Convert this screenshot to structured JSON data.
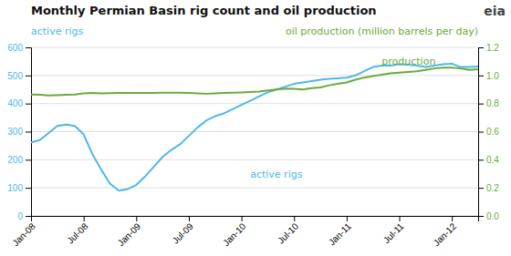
{
  "chart_data": {
    "type": "line",
    "title": "Monthly Permian Basin rig count and oil production",
    "ylabel": "active rigs",
    "y2label": "oil production (million barrels per day)",
    "categories": [
      "Jan-08",
      null,
      null,
      null,
      null,
      null,
      "Jul-08",
      null,
      null,
      null,
      null,
      null,
      "Jan-09",
      null,
      null,
      null,
      null,
      null,
      "Jul-09",
      null,
      null,
      null,
      null,
      null,
      "Jan-10",
      null,
      null,
      null,
      null,
      null,
      "Jul-10",
      null,
      null,
      null,
      null,
      null,
      "Jan-11",
      null,
      null,
      null,
      null,
      null,
      "Jul-11",
      null,
      null,
      null,
      null,
      null,
      "Jan-12",
      null,
      null,
      null
    ],
    "series": [
      {
        "color": "#4db8e8",
        "values": [
          262,
          270,
          295,
          320,
          325,
          320,
          290,
          220,
          165,
          115,
          90,
          95,
          110,
          140,
          175,
          210,
          235,
          255,
          285,
          315,
          340,
          355,
          365,
          380,
          395,
          410,
          425,
          440,
          450,
          460,
          470,
          475,
          480,
          485,
          488,
          490,
          492,
          500,
          515,
          530,
          535,
          535,
          540,
          538,
          535,
          530,
          535,
          540,
          542,
          530,
          530,
          532
        ]
      },
      {
        "color": "#6aaa3a",
        "axis": "y2",
        "values": [
          0.865,
          0.862,
          0.858,
          0.86,
          0.863,
          0.865,
          0.872,
          0.875,
          0.872,
          0.874,
          0.876,
          0.876,
          0.876,
          0.875,
          0.876,
          0.878,
          0.878,
          0.878,
          0.876,
          0.873,
          0.87,
          0.872,
          0.875,
          0.877,
          0.879,
          0.882,
          0.886,
          0.893,
          0.9,
          0.907,
          0.905,
          0.9,
          0.91,
          0.915,
          0.93,
          0.94,
          0.95,
          0.97,
          0.985,
          0.995,
          1.005,
          1.015,
          1.02,
          1.025,
          1.03,
          1.04,
          1.05,
          1.055,
          1.055,
          1.05,
          1.04,
          1.045
        ]
      }
    ],
    "ylim": [
      0,
      600
    ],
    "yticks": [
      0,
      100,
      200,
      300,
      400,
      500,
      600
    ],
    "y2lim": [
      0.0,
      1.2
    ],
    "y2ticks": [
      {
        "value": 0,
        "label": "0.0"
      },
      0.2,
      0.4,
      0.6,
      0.8,
      {
        "value": 1,
        "label": "1.0"
      },
      1.2
    ],
    "grid": true,
    "annotations": [
      {
        "text": "active rigs",
        "x": 25,
        "y": 148
      },
      {
        "text": "production",
        "x": 40,
        "y": 1.062,
        "axis": "y2"
      },
      {
        "text": "eia"
      }
    ]
  }
}
